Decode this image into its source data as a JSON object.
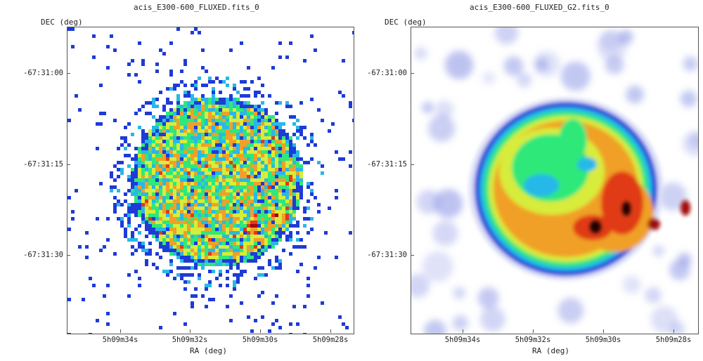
{
  "panels": [
    {
      "title": "acis_E300-600_FLUXED.fits_0",
      "y_axis_label": "DEC (deg)",
      "x_axis_label": "RA (deg)",
      "y_ticks": [
        "-67:31:00",
        "-67:31:15",
        "-67:31:30"
      ],
      "x_ticks": [
        "5h09m34s",
        "5h09m32s",
        "5h09m30s",
        "5h09m28s"
      ],
      "image_style": "raw-counts-pixelated"
    },
    {
      "title": "acis_E300-600_FLUXED_G2.fits_0",
      "y_axis_label": "DEC (deg)",
      "x_axis_label": "RA (deg)",
      "y_ticks": [
        "-67:31:00",
        "-67:31:15",
        "-67:31:30"
      ],
      "x_ticks": [
        "5h09m34s",
        "5h09m32s",
        "5h09m30s",
        "5h09m28s"
      ],
      "image_style": "gaussian-smoothed"
    }
  ],
  "colormap": [
    "#1e3bd8",
    "#28b8e8",
    "#2ee87a",
    "#d8ec3a",
    "#f0a028",
    "#e03a18",
    "#a00808"
  ]
}
